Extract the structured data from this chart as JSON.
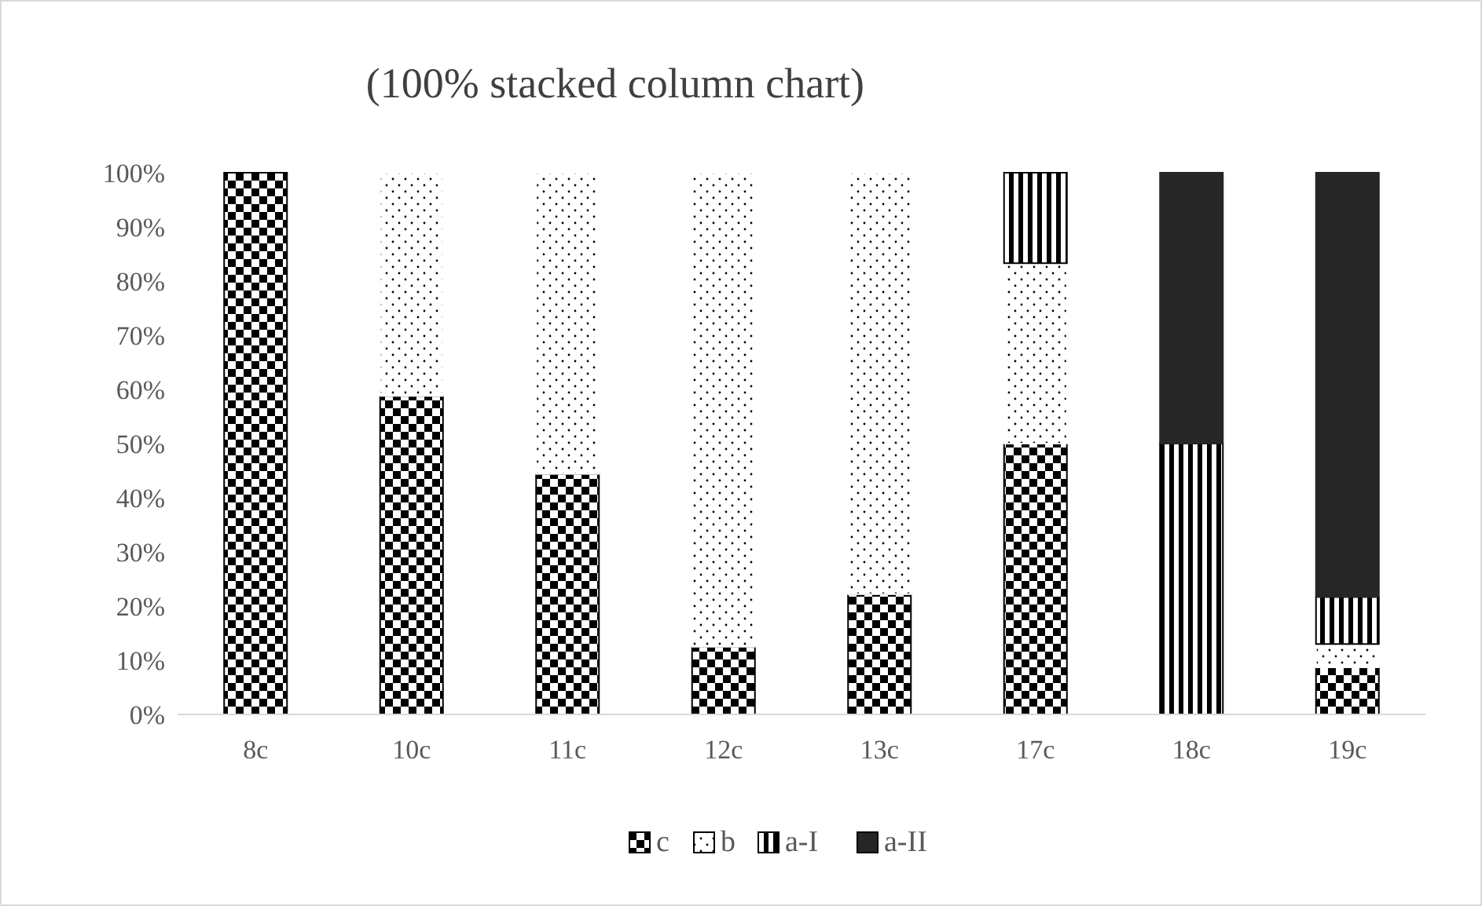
{
  "chart_data": {
    "type": "bar",
    "title": "(100% stacked column chart)",
    "stacked": true,
    "categories": [
      "8c",
      "10c",
      "11c",
      "12c",
      "13c",
      "17c",
      "18c",
      "19c"
    ],
    "series": [
      {
        "name": "c",
        "color": "#000000",
        "values": [
          100,
          58.8,
          44.4,
          12.5,
          22.2,
          50,
          0,
          8.7
        ]
      },
      {
        "name": "b",
        "color": "#ffffff",
        "values": [
          0,
          41.2,
          55.6,
          87.5,
          77.8,
          33.3,
          0,
          4.3
        ]
      },
      {
        "name": "a-I",
        "color": "#000000",
        "values": [
          0,
          0,
          0,
          0,
          0,
          16.7,
          50,
          8.7
        ]
      },
      {
        "name": "a-II",
        "color": "#262626",
        "values": [
          0,
          0,
          0,
          0,
          0,
          0,
          50,
          78.3
        ]
      }
    ],
    "ylim": [
      0,
      100
    ],
    "yticks": [
      {
        "value": 0,
        "label": "0%"
      },
      {
        "value": 10,
        "label": "10%"
      },
      {
        "value": 20,
        "label": "20%"
      },
      {
        "value": 30,
        "label": "30%"
      },
      {
        "value": 40,
        "label": "40%"
      },
      {
        "value": 50,
        "label": "50%"
      },
      {
        "value": 60,
        "label": "60%"
      },
      {
        "value": 70,
        "label": "70%"
      },
      {
        "value": 80,
        "label": "80%"
      },
      {
        "value": 90,
        "label": "90%"
      },
      {
        "value": 100,
        "label": "100%"
      }
    ],
    "legend": "bottom"
  }
}
